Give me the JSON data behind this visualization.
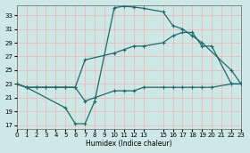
{
  "xlabel": "Humidex (Indice chaleur)",
  "xlim": [
    0,
    23
  ],
  "ylim": [
    16.5,
    34.5
  ],
  "xticks": [
    0,
    1,
    2,
    3,
    4,
    5,
    6,
    7,
    8,
    9,
    10,
    11,
    12,
    13,
    15,
    16,
    17,
    18,
    19,
    20,
    21,
    22,
    23
  ],
  "yticks": [
    17,
    19,
    21,
    23,
    25,
    27,
    29,
    31,
    33
  ],
  "bg_color": "#cde8e5",
  "grid_color": "#f0b8b8",
  "line_color": "#1a6b6b",
  "c1x": [
    0,
    1,
    5,
    6,
    7,
    8,
    10,
    11,
    12,
    13,
    15,
    16,
    17,
    18,
    19,
    22,
    23
  ],
  "c1y": [
    23,
    22.5,
    19.5,
    17.2,
    17.2,
    20.5,
    34.1,
    34.3,
    34.2,
    34.0,
    33.5,
    31.5,
    31.0,
    30.0,
    29.0,
    25.0,
    23.0
  ],
  "c2x": [
    0,
    1,
    2,
    3,
    4,
    5,
    6,
    7,
    10,
    11,
    12,
    13,
    15,
    16,
    17,
    18,
    19,
    20,
    22,
    23
  ],
  "c2y": [
    23,
    22.5,
    22.5,
    22.5,
    22.5,
    22.5,
    22.5,
    26.5,
    27.5,
    28.0,
    28.5,
    28.5,
    29.0,
    30.0,
    30.5,
    30.5,
    28.5,
    28.5,
    23.0,
    23.0
  ],
  "c3x": [
    0,
    1,
    2,
    3,
    4,
    5,
    6,
    7,
    8,
    10,
    11,
    12,
    13,
    15,
    16,
    17,
    18,
    19,
    20,
    22,
    23
  ],
  "c3y": [
    23,
    22.5,
    22.5,
    22.5,
    22.5,
    22.5,
    22.5,
    20.5,
    21.0,
    22.0,
    22.0,
    22.0,
    22.5,
    22.5,
    22.5,
    22.5,
    22.5,
    22.5,
    22.5,
    23.0,
    23.0
  ]
}
